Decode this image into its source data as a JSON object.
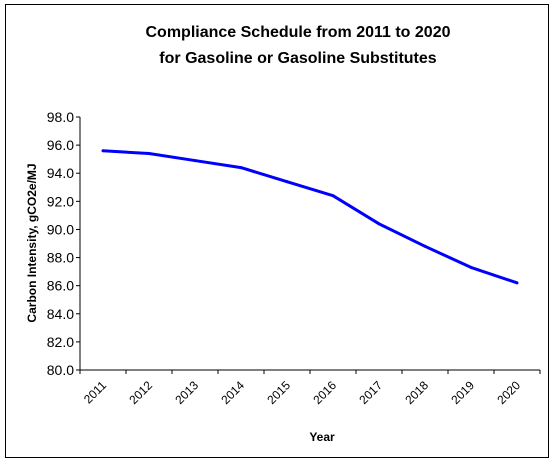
{
  "chart_data": {
    "type": "line",
    "title_line1": "Compliance Schedule from 2011 to 2020",
    "title_line2": "for Gasoline or Gasoline Substitutes",
    "xlabel": "Year",
    "ylabel": "Carbon Intensity,  gCO2e/MJ",
    "categories": [
      "2011",
      "2012",
      "2013",
      "2014",
      "2015",
      "2016",
      "2017",
      "2018",
      "2019",
      "2020"
    ],
    "values": [
      95.6,
      95.4,
      94.9,
      94.4,
      93.4,
      92.4,
      90.4,
      88.8,
      87.3,
      86.2
    ],
    "ylim": [
      80.0,
      98.0
    ],
    "yticks": [
      "80.0",
      "82.0",
      "84.0",
      "86.0",
      "88.0",
      "90.0",
      "92.0",
      "94.0",
      "96.0",
      "98.0"
    ],
    "line_color": "#0000ff",
    "grid": false,
    "legend": "none"
  }
}
